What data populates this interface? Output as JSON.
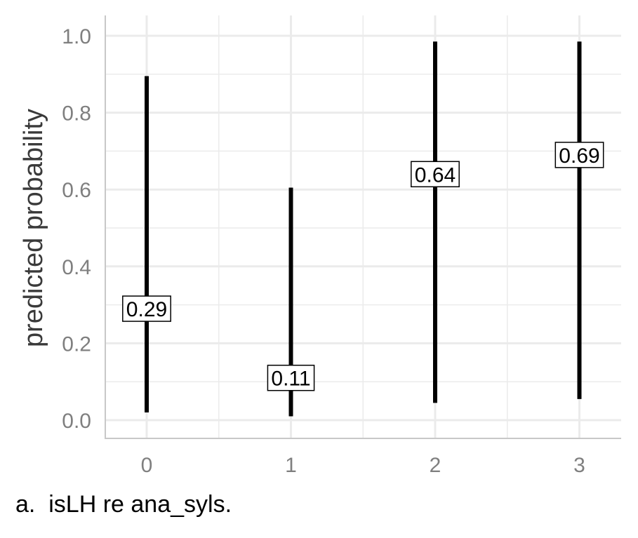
{
  "chart_data": {
    "type": "errorbar",
    "x": [
      "0",
      "1",
      "2",
      "3"
    ],
    "values": [
      0.29,
      0.11,
      0.64,
      0.69
    ],
    "lower": [
      0.02,
      0.01,
      0.045,
      0.055
    ],
    "upper": [
      0.895,
      0.605,
      0.985,
      0.985
    ],
    "data_labels": [
      "0.29",
      "0.11",
      "0.64",
      "0.69"
    ],
    "xlabel": "",
    "ylabel": "predicted probability",
    "ylim": [
      -0.05,
      1.05
    ],
    "yticks": [
      0.0,
      0.2,
      0.4,
      0.6,
      0.8,
      1.0
    ],
    "ytick_labels": [
      "0.0",
      "0.2",
      "0.4",
      "0.6",
      "0.8",
      "1.0"
    ],
    "xtick_labels": [
      "0",
      "1",
      "2",
      "3"
    ],
    "grid": true,
    "colors": {
      "bar": "#000000",
      "grid": "#ebebeb",
      "axis": "#c8c8c8",
      "tick_text": "#7f7f7f",
      "title_text": "#3a3a3a"
    }
  },
  "caption": "a.  isLH re ana_syls."
}
